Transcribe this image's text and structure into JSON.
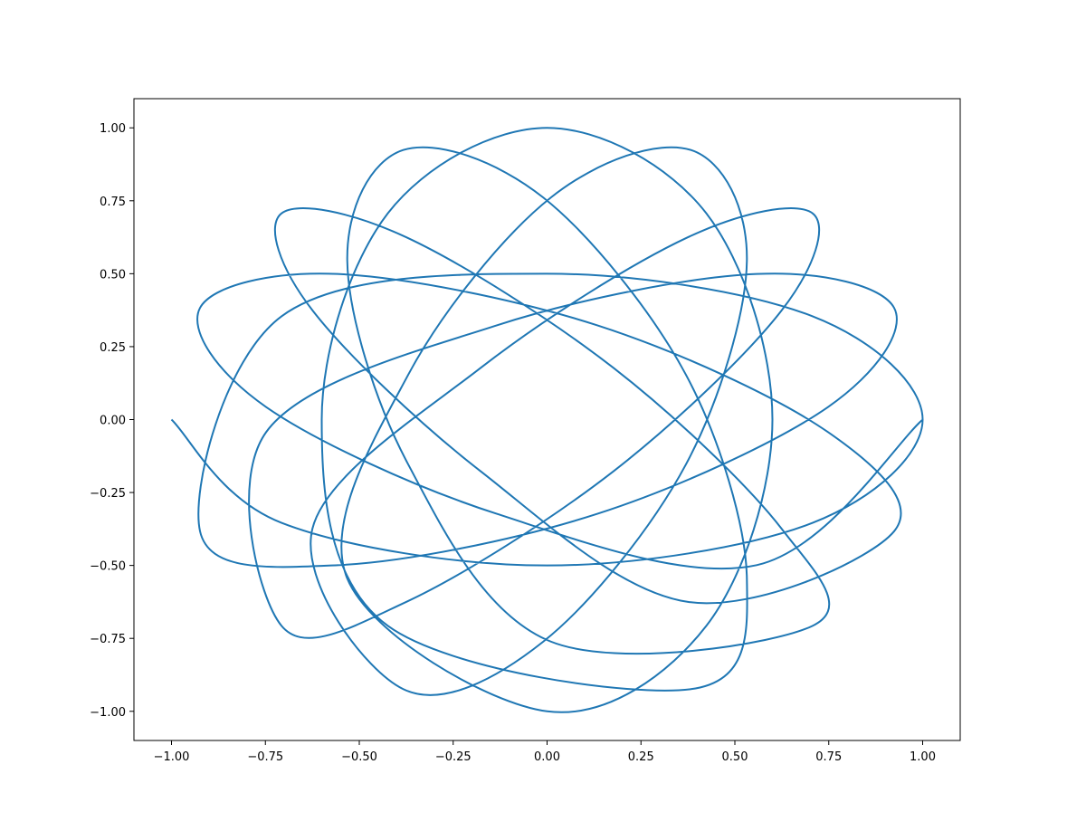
{
  "chart_data": {
    "type": "line",
    "x": [
      -1,
      -0.707,
      0,
      0.707,
      1,
      0.707,
      0,
      -0.707,
      -0.924,
      -0.558,
      0.134,
      0.748,
      0.924,
      0.558,
      -0.134,
      -0.748,
      -0.707,
      -0.375,
      0.177,
      0.625,
      0.707,
      0.375,
      -0.177,
      -0.625,
      -0.383,
      -0.01,
      0.37,
      0.532,
      0.383,
      0.01,
      -0.37,
      -0.532,
      0,
      0.424,
      0.6,
      0.424,
      0,
      -0.424,
      -0.6,
      -0.424,
      0.383,
      0.532,
      0.37,
      -0.01,
      -0.383,
      -0.532,
      -0.37,
      0.01,
      0.707,
      0.625,
      0.177,
      -0.375,
      -0.707,
      -0.625,
      -0.177,
      0.375,
      0.924,
      0.748,
      0.134,
      -0.558,
      -0.924,
      -0.748,
      -0.134,
      0.558,
      1
    ],
    "series": [
      {
        "color": "#1f77b4",
        "values": [
          0,
          -0.354,
          -0.5,
          -0.354,
          0,
          0.354,
          0.5,
          0.354,
          -0.383,
          -0.499,
          -0.323,
          0.043,
          0.383,
          0.499,
          0.323,
          -0.043,
          -0.707,
          -0.625,
          -0.177,
          0.375,
          0.707,
          0.625,
          0.177,
          -0.375,
          -0.924,
          -0.761,
          -0.153,
          0.545,
          0.924,
          0.761,
          0.153,
          -0.545,
          -1,
          -0.707,
          0,
          0.707,
          1,
          0.707,
          0,
          -0.707,
          -0.924,
          -0.545,
          0.153,
          0.761,
          0.924,
          0.545,
          -0.153,
          -0.761,
          -0.707,
          -0.375,
          0.177,
          0.625,
          0.707,
          0.375,
          -0.177,
          -0.625,
          -0.383,
          -0.043,
          0.323,
          0.499,
          0.383,
          0.043,
          -0.323,
          -0.499,
          0
        ]
      }
    ],
    "xlim": [
      -1.1,
      1.1
    ],
    "ylim": [
      -1.1,
      1.1
    ],
    "xticks": [
      {
        "value": -1,
        "label": "−1.00"
      },
      {
        "value": -0.75,
        "label": "−0.75"
      },
      {
        "value": -0.5,
        "label": "−0.50"
      },
      {
        "value": -0.25,
        "label": "−0.25"
      },
      {
        "value": 0,
        "label": "0.00"
      },
      {
        "value": 0.25,
        "label": "0.25"
      },
      {
        "value": 0.5,
        "label": "0.50"
      },
      {
        "value": 0.75,
        "label": "0.75"
      },
      {
        "value": 1,
        "label": "1.00"
      }
    ],
    "yticks": [
      {
        "value": -1,
        "label": "−1.00"
      },
      {
        "value": -0.75,
        "label": "−0.75"
      },
      {
        "value": -0.5,
        "label": "−0.50"
      },
      {
        "value": -0.25,
        "label": "−0.25"
      },
      {
        "value": 0,
        "label": "0.00"
      },
      {
        "value": 0.25,
        "label": "0.25"
      },
      {
        "value": 0.5,
        "label": "0.50"
      },
      {
        "value": 0.75,
        "label": "0.75"
      },
      {
        "value": 1,
        "label": "1.00"
      }
    ],
    "grid": false
  }
}
